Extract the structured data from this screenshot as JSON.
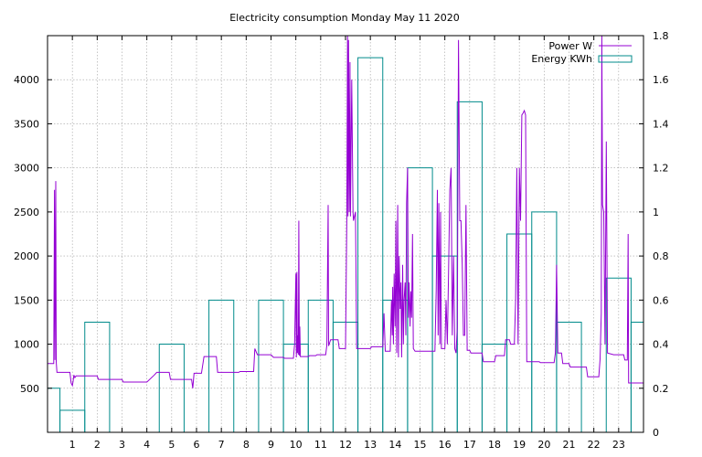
{
  "chart_data": {
    "type": "line",
    "title": "Electricity consumption Monday May 11 2020",
    "xlabel": "",
    "ylabel": "",
    "y2label": "",
    "xlim": [
      0,
      24
    ],
    "ylim": [
      0,
      4500
    ],
    "y2lim": [
      0,
      1.8
    ],
    "grid": true,
    "legend_position": "top-right",
    "x_ticks": [
      1,
      2,
      3,
      4,
      5,
      6,
      7,
      8,
      9,
      10,
      11,
      12,
      13,
      14,
      15,
      16,
      17,
      18,
      19,
      20,
      21,
      22,
      23
    ],
    "y_ticks": [
      500,
      1000,
      1500,
      2000,
      2500,
      3000,
      3500,
      4000
    ],
    "y2_ticks": [
      0,
      0.2,
      0.4,
      0.6,
      0.8,
      1,
      1.2,
      1.4,
      1.6,
      1.8
    ],
    "series": [
      {
        "name": "Power W",
        "axis": "left",
        "style": "line",
        "color": "#9400d3",
        "points": [
          [
            0.0,
            780
          ],
          [
            0.25,
            780
          ],
          [
            0.28,
            2750
          ],
          [
            0.3,
            820
          ],
          [
            0.33,
            2850
          ],
          [
            0.35,
            800
          ],
          [
            0.38,
            680
          ],
          [
            0.9,
            680
          ],
          [
            0.95,
            560
          ],
          [
            1.0,
            530
          ],
          [
            1.03,
            580
          ],
          [
            1.06,
            650
          ],
          [
            1.1,
            620
          ],
          [
            1.15,
            640
          ],
          [
            2.0,
            640
          ],
          [
            2.05,
            600
          ],
          [
            3.0,
            600
          ],
          [
            3.05,
            570
          ],
          [
            4.0,
            570
          ],
          [
            4.3,
            650
          ],
          [
            4.4,
            680
          ],
          [
            4.9,
            680
          ],
          [
            4.95,
            600
          ],
          [
            5.8,
            600
          ],
          [
            5.85,
            500
          ],
          [
            5.9,
            670
          ],
          [
            6.2,
            670
          ],
          [
            6.3,
            860
          ],
          [
            6.8,
            860
          ],
          [
            6.85,
            680
          ],
          [
            7.7,
            680
          ],
          [
            7.75,
            690
          ],
          [
            8.3,
            690
          ],
          [
            8.35,
            950
          ],
          [
            8.45,
            880
          ],
          [
            9.0,
            880
          ],
          [
            9.1,
            850
          ],
          [
            9.5,
            850
          ],
          [
            9.55,
            840
          ],
          [
            9.9,
            840
          ],
          [
            9.95,
            1000
          ],
          [
            10.0,
            1800
          ],
          [
            10.02,
            850
          ],
          [
            10.04,
            1820
          ],
          [
            10.06,
            900
          ],
          [
            10.08,
            1100
          ],
          [
            10.1,
            880
          ],
          [
            10.12,
            2400
          ],
          [
            10.14,
            870
          ],
          [
            10.16,
            1200
          ],
          [
            10.18,
            860
          ],
          [
            10.5,
            860
          ],
          [
            10.55,
            870
          ],
          [
            10.8,
            870
          ],
          [
            10.85,
            880
          ],
          [
            11.2,
            880
          ],
          [
            11.25,
            990
          ],
          [
            11.3,
            2580
          ],
          [
            11.32,
            980
          ],
          [
            11.4,
            1050
          ],
          [
            11.7,
            1050
          ],
          [
            11.75,
            950
          ],
          [
            12.0,
            950
          ],
          [
            12.05,
            2400
          ],
          [
            12.08,
            4500
          ],
          [
            12.1,
            2450
          ],
          [
            12.12,
            4450
          ],
          [
            12.15,
            2500
          ],
          [
            12.18,
            4200
          ],
          [
            12.2,
            2450
          ],
          [
            12.25,
            4000
          ],
          [
            12.3,
            2500
          ],
          [
            12.32,
            2400
          ],
          [
            12.4,
            2500
          ],
          [
            12.45,
            950
          ],
          [
            13.0,
            950
          ],
          [
            13.05,
            970
          ],
          [
            13.5,
            970
          ],
          [
            13.55,
            1350
          ],
          [
            13.6,
            920
          ],
          [
            13.8,
            920
          ],
          [
            13.85,
            1500
          ],
          [
            13.88,
            1100
          ],
          [
            13.9,
            1650
          ],
          [
            13.93,
            1000
          ],
          [
            13.96,
            1800
          ],
          [
            14.0,
            1200
          ],
          [
            14.03,
            2400
          ],
          [
            14.06,
            900
          ],
          [
            14.1,
            2580
          ],
          [
            14.13,
            850
          ],
          [
            14.16,
            2000
          ],
          [
            14.2,
            1400
          ],
          [
            14.23,
            1700
          ],
          [
            14.26,
            850
          ],
          [
            14.3,
            1900
          ],
          [
            14.33,
            1000
          ],
          [
            14.36,
            1500
          ],
          [
            14.4,
            1700
          ],
          [
            14.43,
            1100
          ],
          [
            14.46,
            2600
          ],
          [
            14.5,
            3000
          ],
          [
            14.53,
            1300
          ],
          [
            14.56,
            1700
          ],
          [
            14.6,
            1200
          ],
          [
            14.63,
            1600
          ],
          [
            14.66,
            1300
          ],
          [
            14.7,
            2250
          ],
          [
            14.73,
            950
          ],
          [
            14.8,
            920
          ],
          [
            15.6,
            920
          ],
          [
            15.65,
            1600
          ],
          [
            15.7,
            2750
          ],
          [
            15.73,
            1100
          ],
          [
            15.76,
            2600
          ],
          [
            15.8,
            1000
          ],
          [
            15.83,
            2500
          ],
          [
            15.86,
            950
          ],
          [
            16.0,
            950
          ],
          [
            16.05,
            1500
          ],
          [
            16.1,
            1000
          ],
          [
            16.15,
            1800
          ],
          [
            16.2,
            2750
          ],
          [
            16.25,
            3000
          ],
          [
            16.3,
            1100
          ],
          [
            16.35,
            2000
          ],
          [
            16.4,
            950
          ],
          [
            16.45,
            900
          ],
          [
            16.5,
            1200
          ],
          [
            16.55,
            4450
          ],
          [
            16.6,
            2400
          ],
          [
            16.65,
            2400
          ],
          [
            16.7,
            1900
          ],
          [
            16.75,
            1100
          ],
          [
            16.8,
            1100
          ],
          [
            16.85,
            2580
          ],
          [
            16.9,
            930
          ],
          [
            17.0,
            930
          ],
          [
            17.05,
            900
          ],
          [
            17.5,
            900
          ],
          [
            17.55,
            800
          ],
          [
            18.0,
            800
          ],
          [
            18.05,
            870
          ],
          [
            18.4,
            870
          ],
          [
            18.45,
            1050
          ],
          [
            18.6,
            1050
          ],
          [
            18.65,
            1000
          ],
          [
            18.8,
            1000
          ],
          [
            18.85,
            1500
          ],
          [
            18.9,
            3000
          ],
          [
            18.95,
            1000
          ],
          [
            19.0,
            3000
          ],
          [
            19.05,
            2400
          ],
          [
            19.1,
            3600
          ],
          [
            19.15,
            3620
          ],
          [
            19.2,
            3650
          ],
          [
            19.25,
            3600
          ],
          [
            19.3,
            800
          ],
          [
            19.8,
            800
          ],
          [
            19.85,
            790
          ],
          [
            20.4,
            790
          ],
          [
            20.45,
            900
          ],
          [
            20.5,
            1900
          ],
          [
            20.55,
            900
          ],
          [
            20.7,
            900
          ],
          [
            20.75,
            780
          ],
          [
            21.0,
            780
          ],
          [
            21.05,
            740
          ],
          [
            21.7,
            740
          ],
          [
            21.75,
            630
          ],
          [
            22.2,
            630
          ],
          [
            22.25,
            830
          ],
          [
            22.3,
            1350
          ],
          [
            22.32,
            4500
          ],
          [
            22.35,
            2580
          ],
          [
            22.4,
            2500
          ],
          [
            22.45,
            1000
          ],
          [
            22.5,
            3300
          ],
          [
            22.55,
            900
          ],
          [
            22.8,
            880
          ],
          [
            23.2,
            880
          ],
          [
            23.25,
            820
          ],
          [
            23.35,
            820
          ],
          [
            23.38,
            2250
          ],
          [
            23.4,
            560
          ],
          [
            24.0,
            560
          ]
        ]
      },
      {
        "name": "Energy KWh",
        "axis": "right",
        "style": "steps",
        "color": "#008b8b",
        "values": [
          0.2,
          0.1,
          0.5,
          0,
          0,
          0.4,
          0,
          0.6,
          0,
          0.6,
          0.4,
          0.6,
          0.5,
          1.7,
          0.6,
          1.2,
          0.8,
          1.5,
          0.4,
          0.9,
          1.0,
          0.5,
          0,
          0.7,
          0.5
        ]
      }
    ]
  }
}
